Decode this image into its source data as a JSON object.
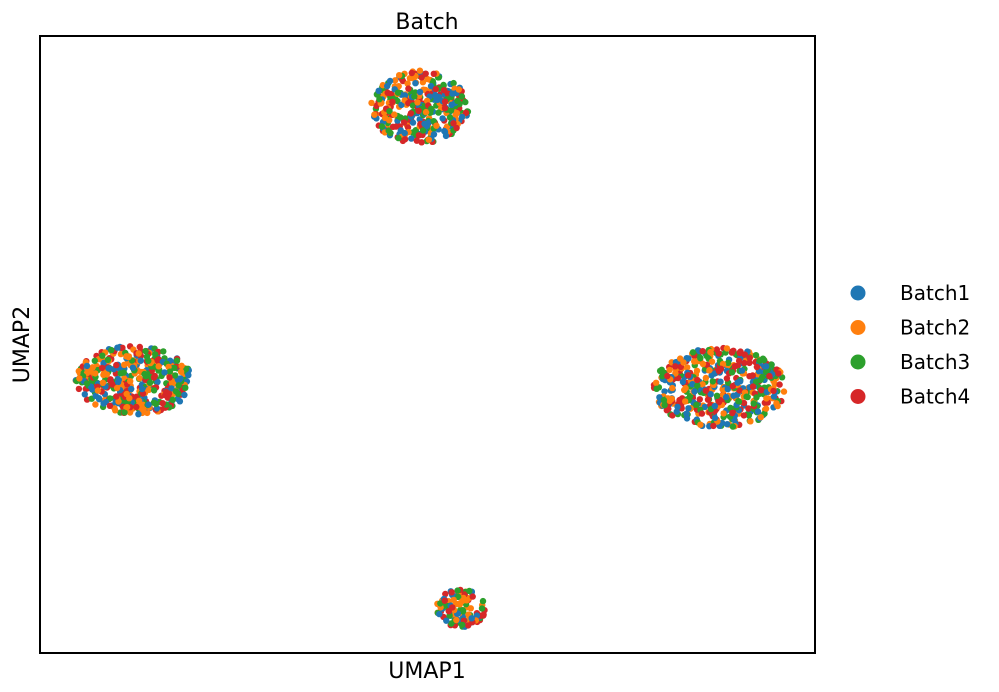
{
  "chart_data": {
    "type": "scatter",
    "title": "Batch",
    "xlabel": "UMAP1",
    "ylabel": "UMAP2",
    "xlim": [
      0,
      100
    ],
    "ylim": [
      0,
      100
    ],
    "xticks": [],
    "yticks": [],
    "grid": false,
    "legend_position": "right",
    "series": [
      {
        "name": "Batch1",
        "color": "#1f77b4"
      },
      {
        "name": "Batch2",
        "color": "#ff7f0e"
      },
      {
        "name": "Batch3",
        "color": "#2ca02c"
      },
      {
        "name": "Batch4",
        "color": "#d62728"
      }
    ],
    "clusters": [
      {
        "center": [
          49.0,
          88.5
        ],
        "spread": [
          6.3,
          5.9
        ],
        "points_per_series": 90
      },
      {
        "center": [
          12.1,
          44.2
        ],
        "spread": [
          7.5,
          5.6
        ],
        "points_per_series": 110
      },
      {
        "center": [
          87.7,
          43.0
        ],
        "spread": [
          8.5,
          6.5
        ],
        "points_per_series": 125
      },
      {
        "center": [
          54.3,
          7.3
        ],
        "spread": [
          3.2,
          3.1
        ],
        "points_per_series": 28
      }
    ]
  }
}
